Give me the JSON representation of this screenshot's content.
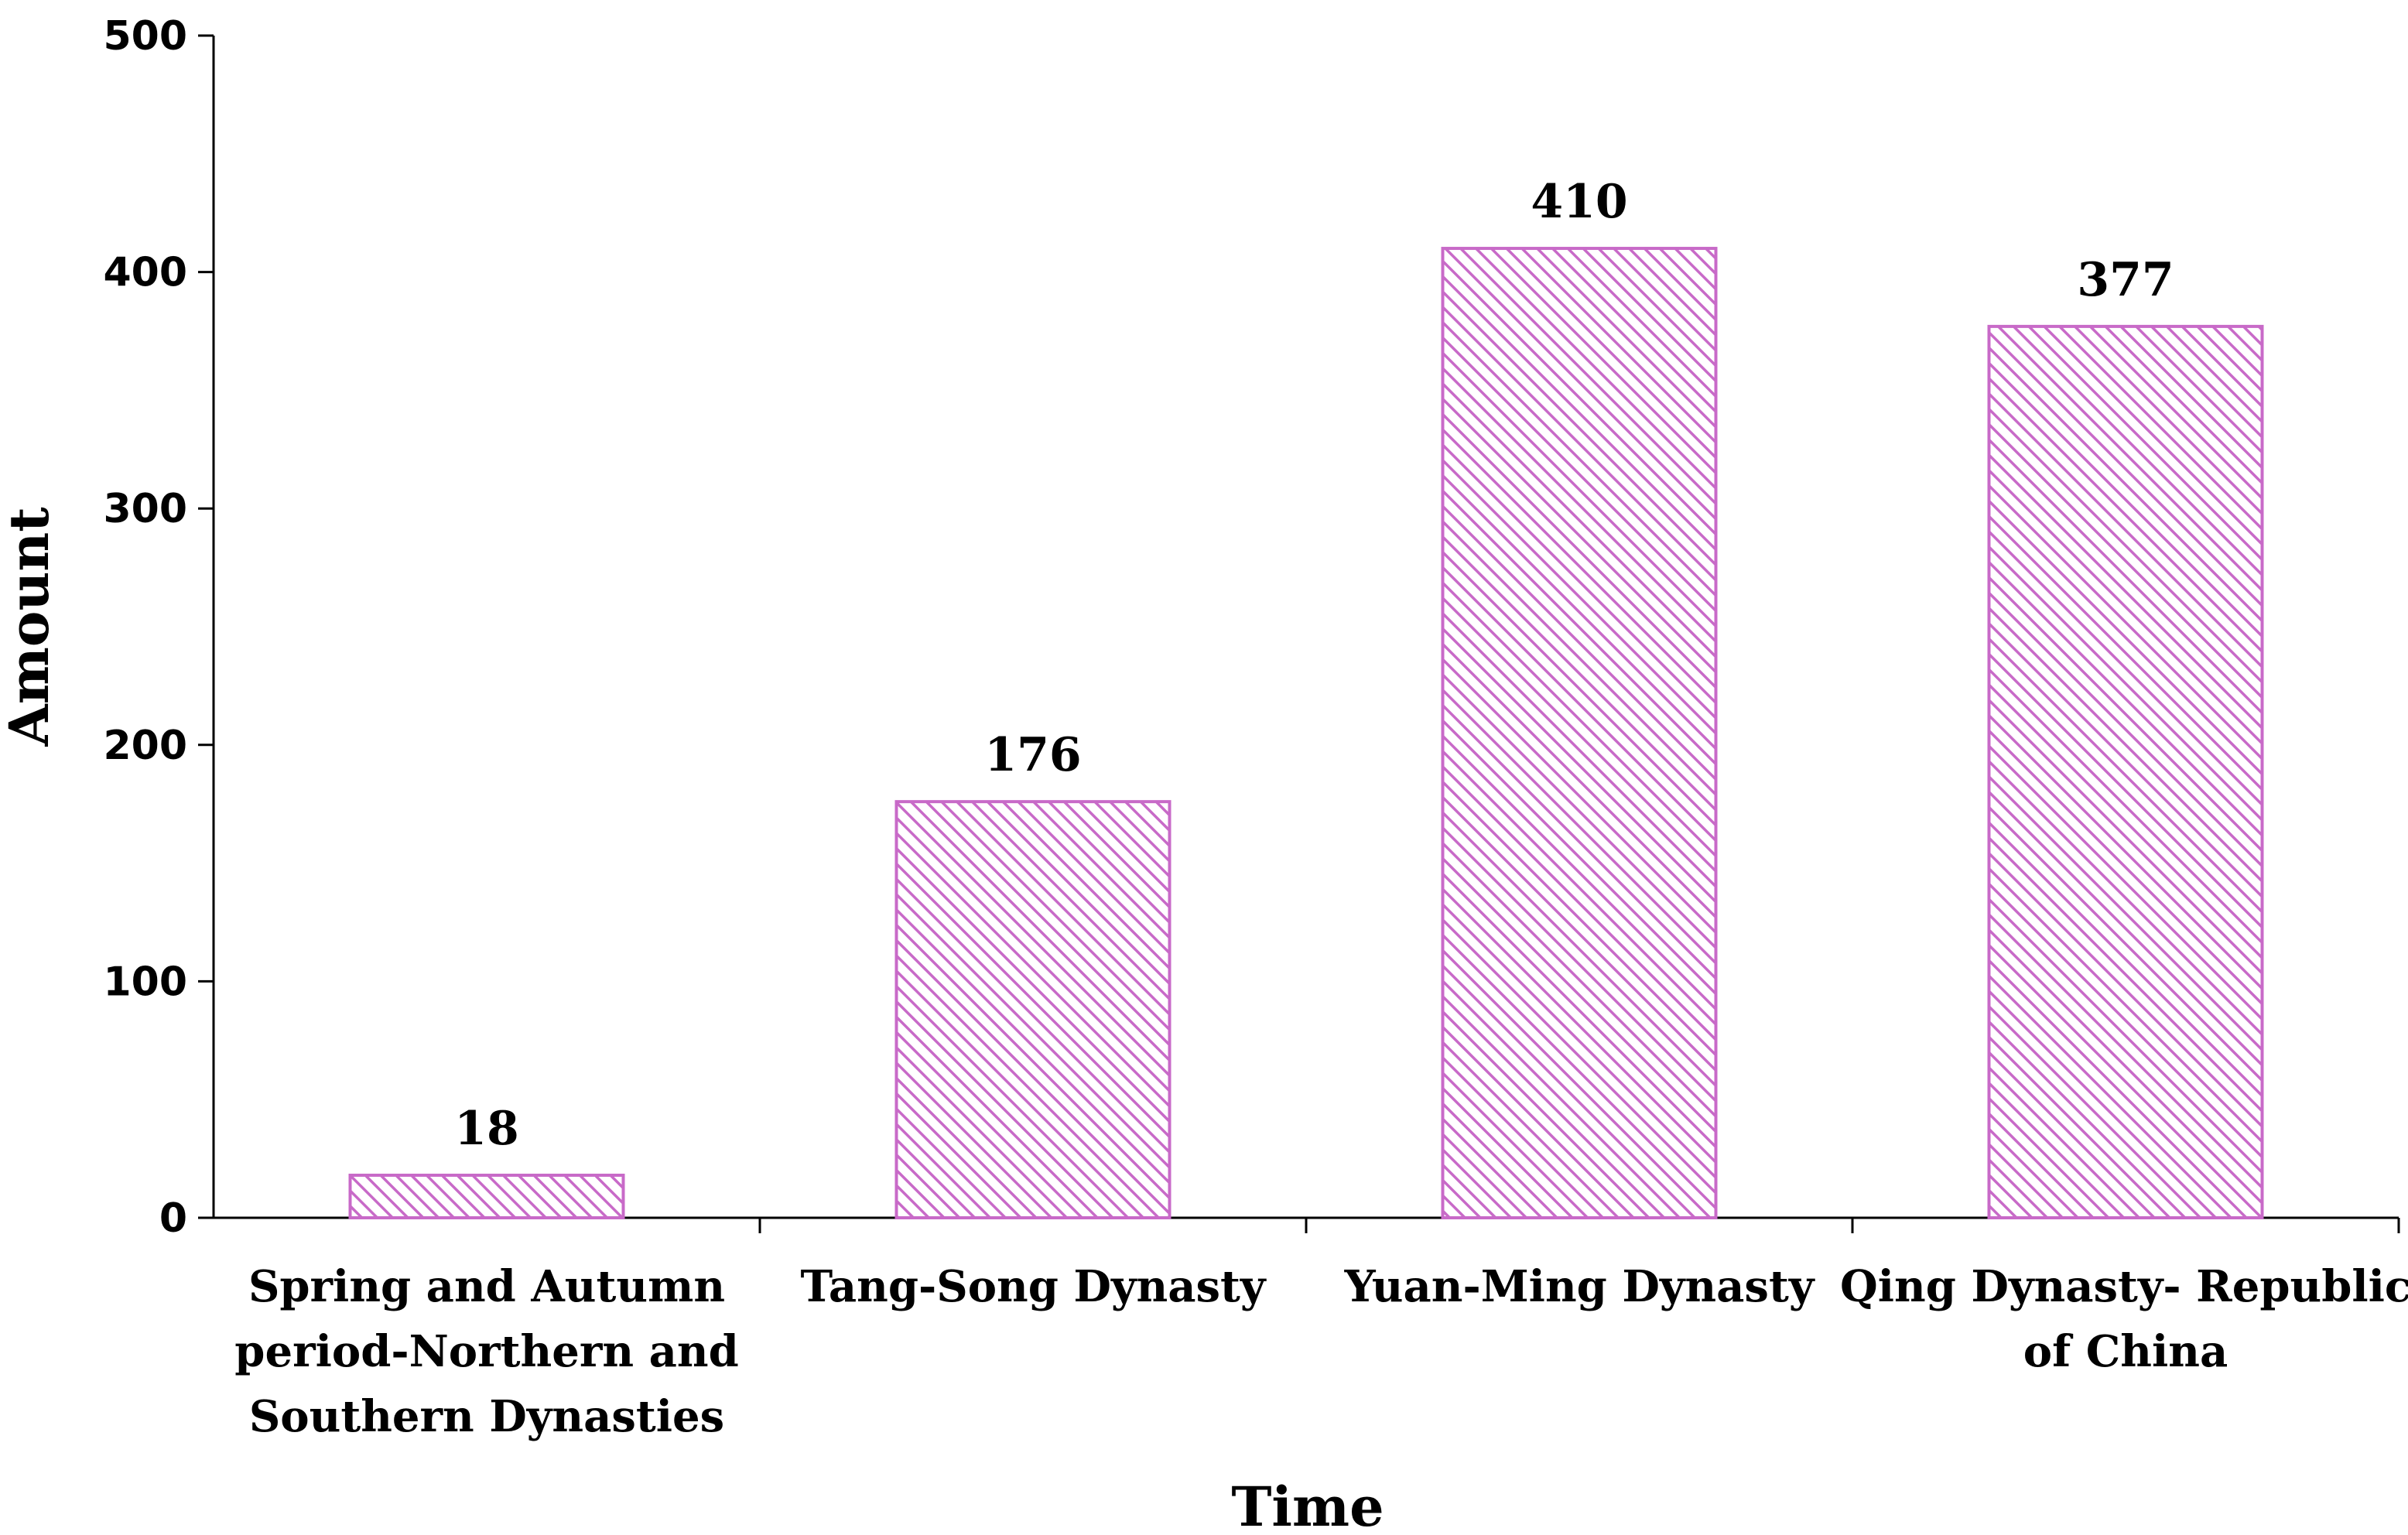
{
  "chart_data": {
    "type": "bar",
    "categories": [
      "Spring and Autumn period-Northern and Southern Dynasties",
      "Tang-Song Dynasty",
      "Yuan-Ming Dynasty",
      "Qing Dynasty- Republic of China"
    ],
    "category_label_lines": [
      [
        "Spring and Autumn",
        "period-Northern and",
        "Southern Dynasties"
      ],
      [
        "Tang-Song Dynasty"
      ],
      [
        "Yuan-Ming Dynasty"
      ],
      [
        "Qing Dynasty- Republic",
        "of China"
      ]
    ],
    "values": [
      18,
      176,
      410,
      377
    ],
    "data_labels": [
      "18",
      "176",
      "410",
      "377"
    ],
    "xlabel": "Time",
    "ylabel": "Amount",
    "ylim": [
      0,
      500
    ],
    "yticks": [
      0,
      100,
      200,
      300,
      400,
      500
    ],
    "ytick_labels": [
      "0",
      "100",
      "200",
      "300",
      "400",
      "500"
    ],
    "grid": false,
    "legend": "none",
    "bar_fill": "hatched",
    "colors": {
      "bar_edge": "#c86ac8",
      "hatch": "#c86ac8",
      "axis": "#000000"
    }
  }
}
